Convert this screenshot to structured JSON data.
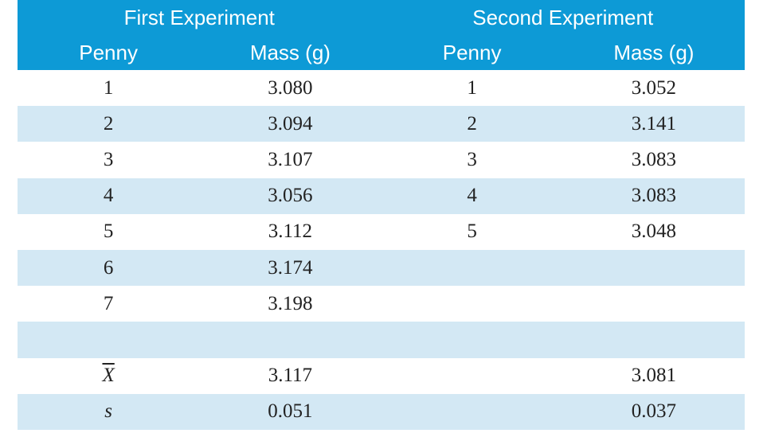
{
  "table": {
    "groups": [
      "First Experiment",
      "Second Experiment"
    ],
    "columns": [
      "Penny",
      "Mass (g)",
      "Penny",
      "Mass (g)"
    ],
    "rows": [
      [
        "1",
        "3.080",
        "1",
        "3.052"
      ],
      [
        "2",
        "3.094",
        "2",
        "3.141"
      ],
      [
        "3",
        "3.107",
        "3",
        "3.083"
      ],
      [
        "4",
        "3.056",
        "4",
        "3.083"
      ],
      [
        "5",
        "3.112",
        "5",
        "3.048"
      ],
      [
        "6",
        "3.174",
        null,
        null
      ],
      [
        "7",
        "3.198",
        null,
        null
      ],
      [
        null,
        null,
        null,
        null
      ]
    ],
    "summary": [
      {
        "label": "X",
        "values": [
          "3.117",
          "3.081"
        ]
      },
      {
        "label": "s",
        "values": [
          "0.051",
          "0.037"
        ]
      }
    ]
  }
}
